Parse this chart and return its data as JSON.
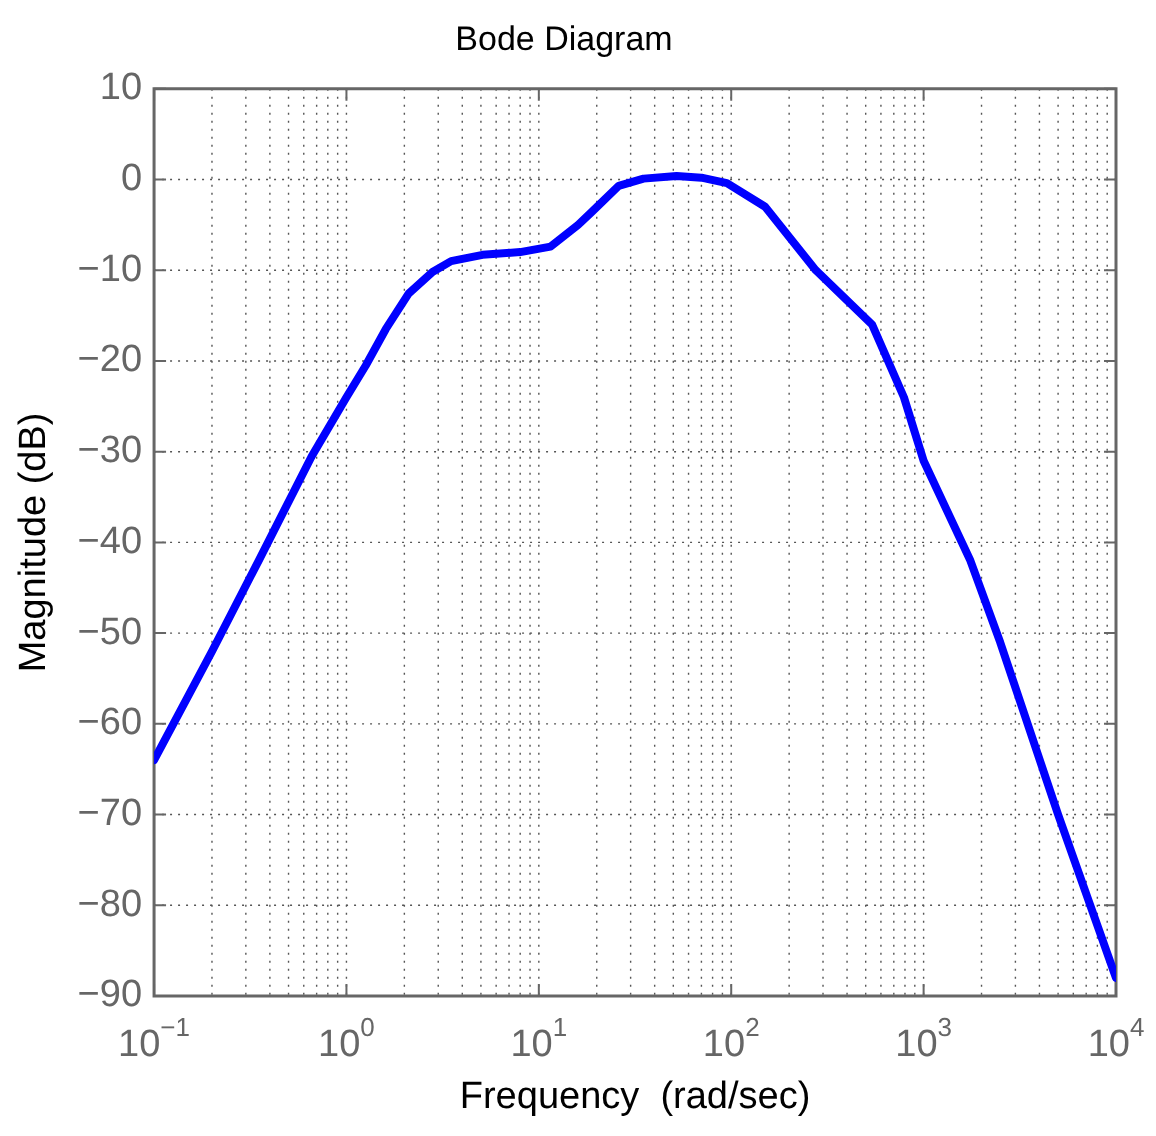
{
  "chart_data": {
    "type": "line",
    "title": "Bode Diagram",
    "xlabel": "Frequency  (rad/sec)",
    "ylabel": "Magnitude (dB)",
    "log": "x",
    "grid": true,
    "legend": false,
    "marker": "none",
    "line_style": "solid",
    "xlim": [
      0.1,
      10000
    ],
    "xticks": [
      {
        "value": 0.1,
        "label": "10$^{−1}$"
      },
      {
        "value": 1,
        "label": "10$^{0}$"
      },
      {
        "value": 10,
        "label": "10$^{1}$"
      },
      {
        "value": 100,
        "label": "10$^{2}$"
      },
      {
        "value": 1000,
        "label": "10$^{3}$"
      },
      {
        "value": 10000,
        "label": "10$^{4}$"
      }
    ],
    "ylim": [
      -90,
      10
    ],
    "yticks": [
      -90,
      -80,
      -70,
      -60,
      -50,
      -40,
      -30,
      -20,
      -10,
      0,
      10
    ],
    "series": [
      {
        "color": "#0000ff",
        "x": [
          0.1,
          0.2,
          0.35,
          0.66,
          1,
          1.26,
          1.6,
          2.1,
          2.8,
          3.5,
          5.1,
          8,
          11.5,
          16,
          19,
          26,
          35,
          52,
          70,
          95,
          150,
          275,
          540,
          790,
          1000,
          1750,
          2500,
          5000,
          10000
        ],
        "values": [
          -64,
          -52,
          -42,
          -30.5,
          -24,
          -20.5,
          -16.5,
          -12.6,
          -10.2,
          -9,
          -8.3,
          -8,
          -7.4,
          -5,
          -3.5,
          -0.7,
          0.1,
          0.4,
          0.2,
          -0.4,
          -3,
          -10,
          -16,
          -24,
          -31,
          -42,
          -51,
          -70,
          -88
        ]
      }
    ]
  }
}
